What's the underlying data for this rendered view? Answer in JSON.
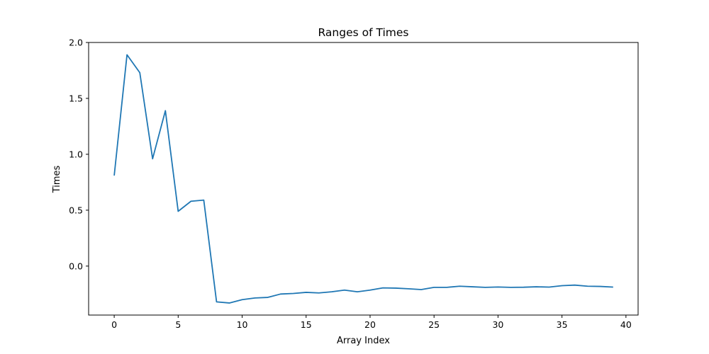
{
  "chart_data": {
    "type": "line",
    "title": "Ranges of Times",
    "xlabel": "Array Index",
    "ylabel": "Times",
    "xlim": [
      -2,
      40.95
    ],
    "ylim": [
      -0.438,
      2.0
    ],
    "xticks": [
      0,
      5,
      10,
      15,
      20,
      25,
      30,
      35,
      40
    ],
    "yticks": [
      0.0,
      0.5,
      1.0,
      1.5,
      2.0
    ],
    "ytick_labels": [
      "0.0",
      "0.5",
      "1.0",
      "1.5",
      "2.0"
    ],
    "grid": false,
    "color": "#1f77b4",
    "series": [
      {
        "x": [
          0,
          1,
          2,
          3,
          4,
          5,
          6,
          7,
          8,
          9,
          10,
          11,
          12,
          13,
          14,
          15,
          16,
          17,
          18,
          19,
          20,
          21,
          22,
          23,
          24,
          25,
          26,
          27,
          28,
          29,
          30,
          31,
          32,
          33,
          34,
          35,
          36,
          37,
          38,
          39
        ],
        "y": [
          0.81,
          1.89,
          1.73,
          0.96,
          1.39,
          0.49,
          0.58,
          0.59,
          -0.32,
          -0.33,
          -0.3,
          -0.285,
          -0.28,
          -0.25,
          -0.245,
          -0.235,
          -0.24,
          -0.23,
          -0.215,
          -0.23,
          -0.215,
          -0.195,
          -0.197,
          -0.203,
          -0.21,
          -0.19,
          -0.19,
          -0.18,
          -0.185,
          -0.19,
          -0.187,
          -0.19,
          -0.189,
          -0.185,
          -0.188,
          -0.175,
          -0.17,
          -0.18,
          -0.182,
          -0.188
        ]
      }
    ]
  }
}
